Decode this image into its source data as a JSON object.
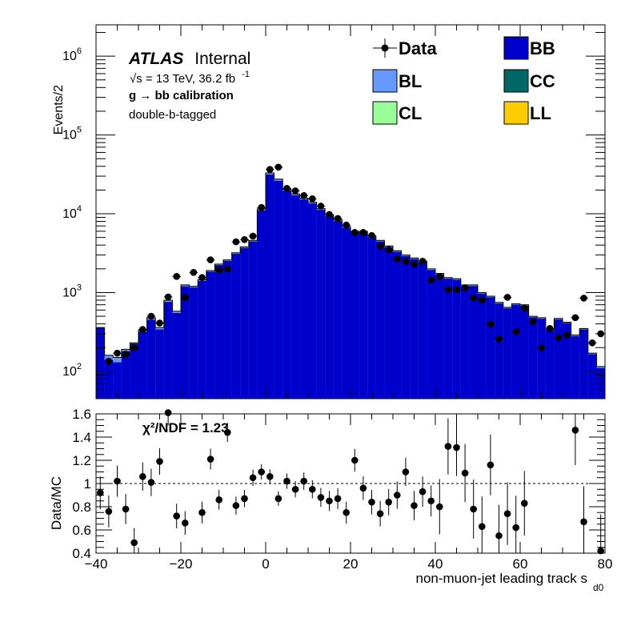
{
  "chart_data": {
    "type": "bar",
    "x": [
      -40,
      -38,
      -36,
      -34,
      -32,
      -30,
      -28,
      -26,
      -24,
      -22,
      -20,
      -18,
      -16,
      -14,
      -12,
      -10,
      -8,
      -6,
      -4,
      -2,
      0,
      2,
      4,
      6,
      8,
      10,
      12,
      14,
      16,
      18,
      20,
      22,
      24,
      26,
      28,
      30,
      32,
      34,
      36,
      38,
      40,
      42,
      44,
      46,
      48,
      50,
      52,
      54,
      56,
      58,
      60,
      62,
      64,
      66,
      68,
      70,
      72,
      74,
      76,
      78
    ],
    "x_range": [
      -40,
      80
    ],
    "xlabel": "non-muon-jet leading track s",
    "xlabel_sub": "d0",
    "x_ticks": [
      -40,
      -20,
      0,
      20,
      40,
      60,
      80
    ],
    "top_panel": {
      "ylabel": "Events/2",
      "yscale": "log",
      "ylim": [
        45,
        2500000
      ],
      "y_tick_labels": [
        {
          "base": "10",
          "exp": "2",
          "value": 100
        },
        {
          "base": "10",
          "exp": "3",
          "value": 1000
        },
        {
          "base": "10",
          "exp": "4",
          "value": 10000
        },
        {
          "base": "10",
          "exp": "5",
          "value": 100000
        },
        {
          "base": "10",
          "exp": "6",
          "value": 1000000
        }
      ],
      "mc_total": [
        360,
        160,
        150,
        190,
        230,
        330,
        480,
        360,
        800,
        580,
        1250,
        1200,
        1450,
        1900,
        2300,
        2600,
        3200,
        3800,
        4600,
        11500,
        33000,
        27500,
        20500,
        17800,
        15800,
        14000,
        11600,
        9700,
        8400,
        6900,
        6000,
        6000,
        5200,
        4600,
        3900,
        3400,
        3000,
        2750,
        2500,
        2000,
        1750,
        1550,
        1500,
        1250,
        1250,
        1000,
        900,
        750,
        650,
        720,
        700,
        500,
        480,
        350,
        470,
        420,
        290,
        350,
        170,
        115
      ],
      "mc_bl": [
        0,
        20,
        20,
        10,
        5,
        12,
        30,
        20,
        40,
        30,
        50,
        40,
        50,
        60,
        70,
        80,
        100,
        120,
        150,
        500,
        1500,
        1300,
        900,
        700,
        600,
        500,
        400,
        350,
        300,
        250,
        200,
        200,
        170,
        150,
        130,
        110,
        100,
        90,
        80,
        70,
        60,
        50,
        50,
        40,
        40,
        30,
        30,
        25,
        20,
        20,
        20,
        15,
        15,
        10,
        15,
        10,
        10,
        10,
        5,
        5
      ],
      "data": [
        0,
        135,
        170,
        165,
        200,
        340,
        500,
        410,
        880,
        1600,
        870,
        1800,
        1550,
        2600,
        1950,
        2000,
        4400,
        4700,
        5200,
        12000,
        36500,
        39000,
        21000,
        19500,
        17000,
        15500,
        12500,
        9800,
        8700,
        7200,
        5800,
        5800,
        5300,
        3900,
        3500,
        2700,
        2500,
        2300,
        2500,
        1450,
        1600,
        1100,
        1100,
        1150,
        860,
        810,
        400,
        260,
        870,
        320,
        640,
        430,
        200,
        350,
        270,
        290,
        480,
        850,
        230,
        300
      ]
    },
    "ratio_panel": {
      "ylabel": "Data/MC",
      "ylim": [
        0.4,
        1.6
      ],
      "y_ticks": [
        "0.4",
        "0.6",
        "0.8",
        "1",
        "1.2",
        "1.4",
        "1.6"
      ],
      "reference_line": 1.0,
      "values": [
        0.92,
        0.76,
        1.02,
        0.78,
        0.49,
        1.06,
        1.01,
        1.19,
        1.61,
        0.72,
        0.66,
        0.75,
        1.21,
        0.86,
        1.44,
        0.81,
        0.87,
        1.05,
        1.1,
        1.06,
        0.87,
        1.02,
        0.95,
        1.02,
        0.95,
        0.88,
        0.85,
        0.87,
        0.75,
        1.2,
        0.96,
        0.84,
        0.74,
        0.84,
        0.9,
        1.1,
        0.81,
        0.93,
        0.85,
        0.8,
        1.32,
        1.31,
        1.09,
        0.78,
        0.63,
        1.16,
        0.55,
        0.74,
        0.62,
        0.83,
        1.46,
        0.67,
        0.42
      ],
      "values_x": [
        -39,
        -37,
        -35,
        -33,
        -31,
        -29,
        -27,
        -25,
        -23,
        -21,
        -19,
        -15,
        -13,
        -11,
        -9,
        -7,
        -5,
        -3,
        -1,
        1,
        3,
        5,
        7,
        9,
        11,
        13,
        15,
        17,
        19,
        21,
        23,
        25,
        27,
        29,
        31,
        33,
        35,
        37,
        39,
        41,
        43,
        45,
        47,
        49,
        51,
        53,
        55,
        57,
        59,
        61,
        73,
        75,
        79
      ],
      "annotation": "χ²/NDF = 1.23"
    },
    "legend": {
      "placement": "top-right",
      "entries": [
        {
          "name": "Data",
          "style": "marker",
          "color": "#000000"
        },
        {
          "name": "BB",
          "style": "fill",
          "color": "#0000cc"
        },
        {
          "name": "BL",
          "style": "fill",
          "color": "#6699ff"
        },
        {
          "name": "CC",
          "style": "fill",
          "color": "#006666"
        },
        {
          "name": "CL",
          "style": "fill",
          "color": "#99ff99"
        },
        {
          "name": "LL",
          "style": "fill",
          "color": "#ffcc00"
        }
      ]
    },
    "annotations": {
      "atlas": "ATLAS",
      "internal": "Internal",
      "energy_prefix": "√s = 13 TeV, 36.2 fb",
      "energy_sup": "-1",
      "channel": "g  → bb calibration",
      "tag": "double-b-tagged"
    }
  }
}
